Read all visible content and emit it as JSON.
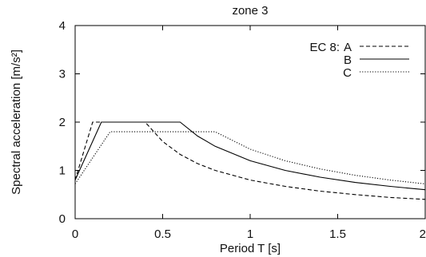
{
  "chart_data": {
    "type": "line",
    "title": "zone 3",
    "xlabel": "Period T [s]",
    "ylabel": "Spectral acceleration [m/s²]",
    "xlim": [
      0,
      2
    ],
    "ylim": [
      0,
      4
    ],
    "x_ticks": [
      "0",
      "0.5",
      "1",
      "1.5",
      "2"
    ],
    "y_ticks": [
      "0",
      "1",
      "2",
      "3",
      "4"
    ],
    "grid": false,
    "legend_position": "top-right",
    "legend_prefix": "EC 8:",
    "series": [
      {
        "name": "A",
        "style": "dashed",
        "x": [
          0,
          0.1,
          0.4,
          0.5,
          0.6,
          0.7,
          0.8,
          1.0,
          1.2,
          1.4,
          1.6,
          1.8,
          2.0
        ],
        "y": [
          0.8,
          2.0,
          2.0,
          1.6,
          1.33,
          1.14,
          1.0,
          0.8,
          0.67,
          0.57,
          0.5,
          0.44,
          0.4
        ]
      },
      {
        "name": "B",
        "style": "solid",
        "x": [
          0,
          0.15,
          0.6,
          0.7,
          0.8,
          1.0,
          1.2,
          1.4,
          1.6,
          1.8,
          2.0
        ],
        "y": [
          0.8,
          2.0,
          2.0,
          1.71,
          1.5,
          1.2,
          1.0,
          0.86,
          0.75,
          0.67,
          0.6
        ]
      },
      {
        "name": "C",
        "style": "dotted",
        "x": [
          0,
          0.2,
          0.8,
          1.0,
          1.2,
          1.4,
          1.6,
          1.8,
          2.0
        ],
        "y": [
          0.72,
          1.8,
          1.8,
          1.44,
          1.2,
          1.03,
          0.9,
          0.8,
          0.72
        ]
      }
    ]
  }
}
